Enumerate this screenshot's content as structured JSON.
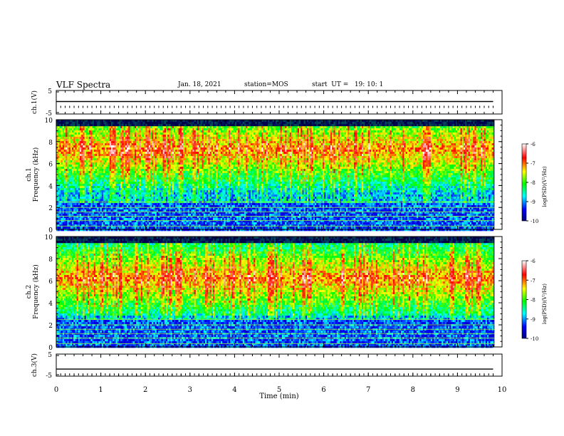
{
  "header": {
    "title": "VLF Spectra",
    "date": "Jan. 18, 2021",
    "station": "station=MOS",
    "start": "start  UT =   19: 10: 1"
  },
  "colors": {
    "colormap": [
      "#000080",
      "#0000ff",
      "#00ffff",
      "#00ff00",
      "#ffff00",
      "#ff0000",
      "#ffffff"
    ],
    "trace": "#000000",
    "spectral_band": "#90ee40"
  },
  "chart_data": [
    {
      "type": "line",
      "name": "ch1-voltage",
      "ylabel": "ch.1(V)",
      "yticks": [
        "5",
        "-5"
      ],
      "ylim": [
        -5,
        5
      ],
      "x": [
        0,
        9.8
      ],
      "values": [
        0.3,
        0.3
      ]
    },
    {
      "type": "heatmap",
      "name": "ch1-spectrogram",
      "ylabel": "ch.1\nFrequency (kHz)",
      "ylim": [
        0,
        10
      ],
      "yticks": [
        "0",
        "2",
        "4",
        "6",
        "8",
        "10"
      ],
      "colorbar": {
        "label": "log(PSD)(V²/Hz)",
        "ticks": [
          "-6",
          "-7",
          "-8",
          "-9",
          "-10"
        ],
        "range": [
          -10,
          -6
        ]
      },
      "x_range_min": [
        0,
        9.83
      ],
      "emission_band_kHz": [
        3,
        9.5
      ],
      "noise_floor_kHz": [
        0,
        2.5
      ],
      "line_tones_kHz": [
        0.3,
        0.8,
        1.2,
        1.6,
        2.0,
        2.5
      ]
    },
    {
      "type": "heatmap",
      "name": "ch2-spectrogram",
      "ylabel": "ch.2\nFrequency (kHz)",
      "ylim": [
        0,
        10
      ],
      "yticks": [
        "0",
        "2",
        "4",
        "6",
        "8",
        "10"
      ],
      "colorbar": {
        "label": "log(PSD)(V²/Hz)",
        "ticks": [
          "-6",
          "-7",
          "-8",
          "-9",
          "-10"
        ],
        "range": [
          -10,
          -6
        ]
      },
      "x_range_min": [
        0,
        9.83
      ],
      "emission_band_kHz": [
        3,
        9.5
      ],
      "noise_floor_kHz": [
        0,
        2.5
      ],
      "line_tones_kHz": [
        0.3,
        0.8,
        1.2,
        1.6,
        2.0,
        2.5
      ]
    },
    {
      "type": "line",
      "name": "ch3-voltage",
      "ylabel": "ch.3(V)",
      "yticks": [
        "5",
        "-5"
      ],
      "ylim": [
        -5,
        5
      ],
      "x": [
        0,
        9.8
      ],
      "values": [
        -1.8,
        -1.8
      ]
    }
  ],
  "xaxis": {
    "label": "Time  (min)",
    "ticks": [
      "0",
      "1",
      "2",
      "3",
      "4",
      "5",
      "6",
      "7",
      "8",
      "9",
      "10"
    ],
    "range": [
      0,
      10
    ]
  }
}
